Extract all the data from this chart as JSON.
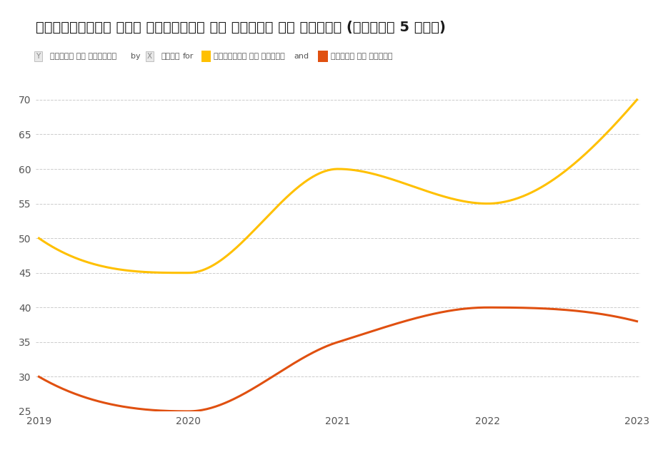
{
  "title": "छत्तीसगढ़ में मलेरिया और डेंगू से मौतें (पिछले 5 साल)",
  "ylabel": "मौतों की संख्या",
  "xlabel": "वर्ष",
  "legend_label1": "मलेरिया से मौतें",
  "legend_label2": "डेंगू से मौतें",
  "years": [
    2019,
    2020,
    2021,
    2022,
    2023
  ],
  "malaria": [
    50,
    45,
    60,
    55,
    70
  ],
  "dengue": [
    30,
    25,
    35,
    40,
    38
  ],
  "malaria_color": "#FFC000",
  "dengue_color": "#E05010",
  "background_color": "#ffffff",
  "grid_color": "#cccccc",
  "ylim_min": 25,
  "ylim_max": 72,
  "yticks": [
    25,
    30,
    35,
    40,
    45,
    50,
    55,
    60,
    65,
    70
  ],
  "title_fontsize": 14,
  "axis_fontsize": 10,
  "legend_fontsize": 8.5,
  "line_width": 2.2
}
